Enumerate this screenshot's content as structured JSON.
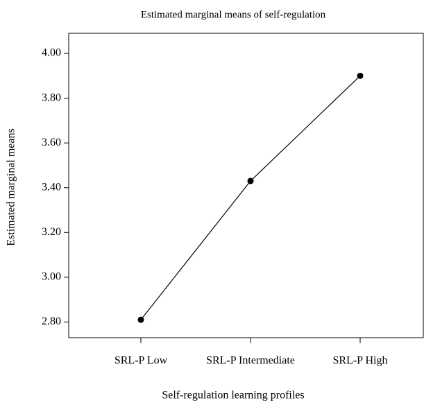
{
  "chart_data": {
    "type": "line",
    "title": "Estimated marginal means of self-regulation",
    "xlabel": "Self-regulation learning profiles",
    "ylabel": "Estimated marginal means",
    "categories": [
      "SRL-P Low",
      "SRL-P Intermediate",
      "SRL-P High"
    ],
    "series": [
      {
        "name": "Estimated marginal means",
        "color": "#000000",
        "values": [
          2.81,
          3.43,
          3.9
        ]
      }
    ],
    "ylim": [
      2.73,
      4.09
    ],
    "yticks": [
      {
        "value": 2.8,
        "label": "2.80"
      },
      {
        "value": 3.0,
        "label": "3.00"
      },
      {
        "value": 3.2,
        "label": "3.20"
      },
      {
        "value": 3.4,
        "label": "3.40"
      },
      {
        "value": 3.6,
        "label": "3.60"
      },
      {
        "value": 3.8,
        "label": "3.80"
      },
      {
        "value": 4.0,
        "label": "4.00"
      }
    ],
    "grid": false
  }
}
